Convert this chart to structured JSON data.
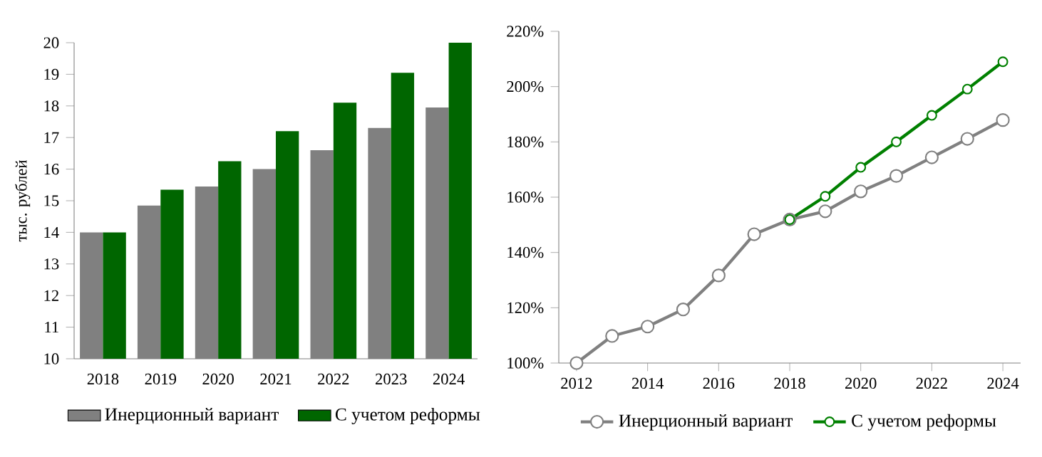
{
  "chart_data": [
    {
      "type": "bar",
      "ylabel": "тыс. рублей",
      "categories": [
        "2018",
        "2019",
        "2020",
        "2021",
        "2022",
        "2023",
        "2024"
      ],
      "series": [
        {
          "name": "Инерционный вариант",
          "color": "#808080",
          "values": [
            14.0,
            14.85,
            15.45,
            16.0,
            16.6,
            17.3,
            17.95
          ]
        },
        {
          "name": "С учетом реформы",
          "color": "#006600",
          "values": [
            14.0,
            15.35,
            16.25,
            17.2,
            18.1,
            19.05,
            20.0
          ]
        }
      ],
      "ylim": [
        10,
        20
      ],
      "yticks": [
        10,
        11,
        12,
        13,
        14,
        15,
        16,
        17,
        18,
        19,
        20
      ],
      "grid": false,
      "legend": "bottom"
    },
    {
      "type": "line",
      "xlim": [
        2011.5,
        2024.5
      ],
      "xticks": [
        2012,
        2014,
        2016,
        2018,
        2020,
        2022,
        2024
      ],
      "series": [
        {
          "name": "Инерционный вариант",
          "color": "#808080",
          "x": [
            2012,
            2013,
            2014,
            2015,
            2016,
            2017,
            2018,
            2019,
            2020,
            2021,
            2022,
            2023,
            2024
          ],
          "values": [
            100,
            109.8,
            113.2,
            119.4,
            131.7,
            146.6,
            151.9,
            154.9,
            162.1,
            167.7,
            174.4,
            181.1,
            187.9
          ]
        },
        {
          "name": "С учетом реформы",
          "color": "#008000",
          "x": [
            2018,
            2019,
            2020,
            2021,
            2022,
            2023,
            2024
          ],
          "values": [
            151.9,
            160.3,
            170.8,
            180.0,
            189.6,
            199.1,
            209.0
          ]
        }
      ],
      "ylim": [
        100,
        220
      ],
      "yticks": [
        {
          "value": 100,
          "label": "100%"
        },
        {
          "value": 120,
          "label": "120%"
        },
        {
          "value": 140,
          "label": "140%"
        },
        {
          "value": 160,
          "label": "160%"
        },
        {
          "value": 180,
          "label": "180%"
        },
        {
          "value": 200,
          "label": "200%"
        },
        {
          "value": 220,
          "label": "220%"
        }
      ],
      "grid": false,
      "legend": "bottom",
      "marker": "circle",
      "line_style": "solid"
    }
  ]
}
